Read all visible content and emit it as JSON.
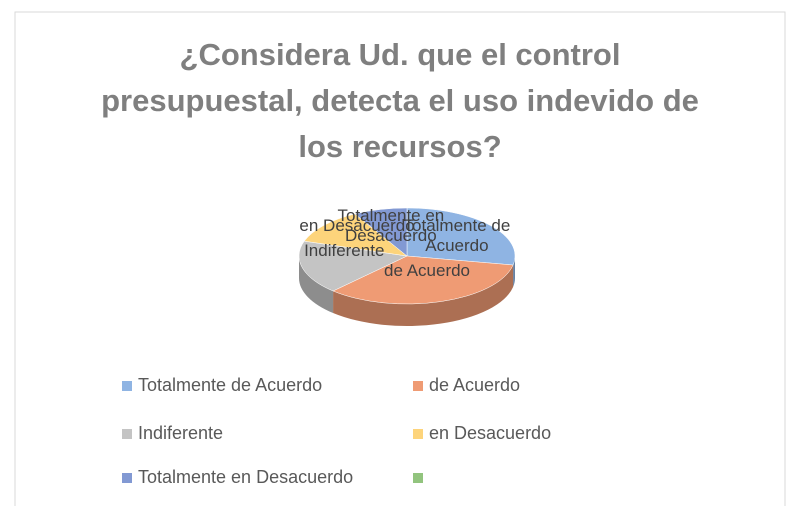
{
  "chart_data": {
    "type": "pie",
    "title": "¿Considera  Ud. que el control presupuestal, detecta el uso indevido de los recursos?",
    "categories": [
      "Totalmente de Acuerdo",
      "de Acuerdo",
      "Indiferente",
      "en Desacuerdo",
      "Totalmente en Desacuerdo",
      null
    ],
    "values": [
      28,
      34,
      18,
      12,
      8,
      0
    ],
    "colors": [
      "#8fb4e3",
      "#ef9b74",
      "#c4c4c4",
      "#fdd47b",
      "#8299d3",
      "#92c47e"
    ],
    "legend": "bottom"
  }
}
